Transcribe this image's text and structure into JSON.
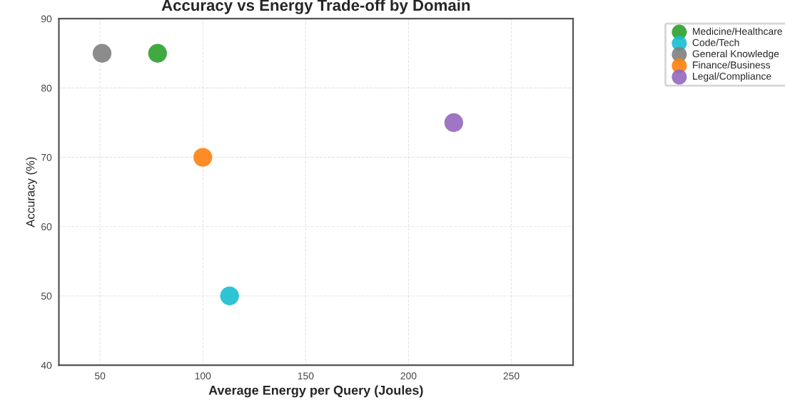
{
  "chart_data": {
    "type": "scatter",
    "title": "Accuracy vs Energy Trade-off by Domain",
    "xlabel": "Average Energy per Query (Joules)",
    "ylabel": "Accuracy (%)",
    "series": [
      {
        "name": "Medicine/Healthcare",
        "color": "#2ca02c",
        "x": [
          78
        ],
        "values": [
          85
        ]
      },
      {
        "name": "Code/Tech",
        "color": "#17becf",
        "x": [
          113
        ],
        "values": [
          50
        ]
      },
      {
        "name": "General Knowledge",
        "color": "#7f7f7f",
        "x": [
          51
        ],
        "values": [
          85
        ]
      },
      {
        "name": "Finance/Business",
        "color": "#ff7f0e",
        "x": [
          100
        ],
        "values": [
          70
        ]
      },
      {
        "name": "Legal/Compliance",
        "color": "#9467bd",
        "x": [
          222
        ],
        "values": [
          75
        ]
      }
    ],
    "xlim": [
      30,
      280
    ],
    "xticks": [
      50,
      100,
      150,
      200,
      250
    ],
    "ylim": [
      40,
      90
    ],
    "yticks": [
      40,
      50,
      60,
      70,
      80,
      90
    ],
    "grid": true,
    "legend": "top right",
    "marker": "circle"
  }
}
